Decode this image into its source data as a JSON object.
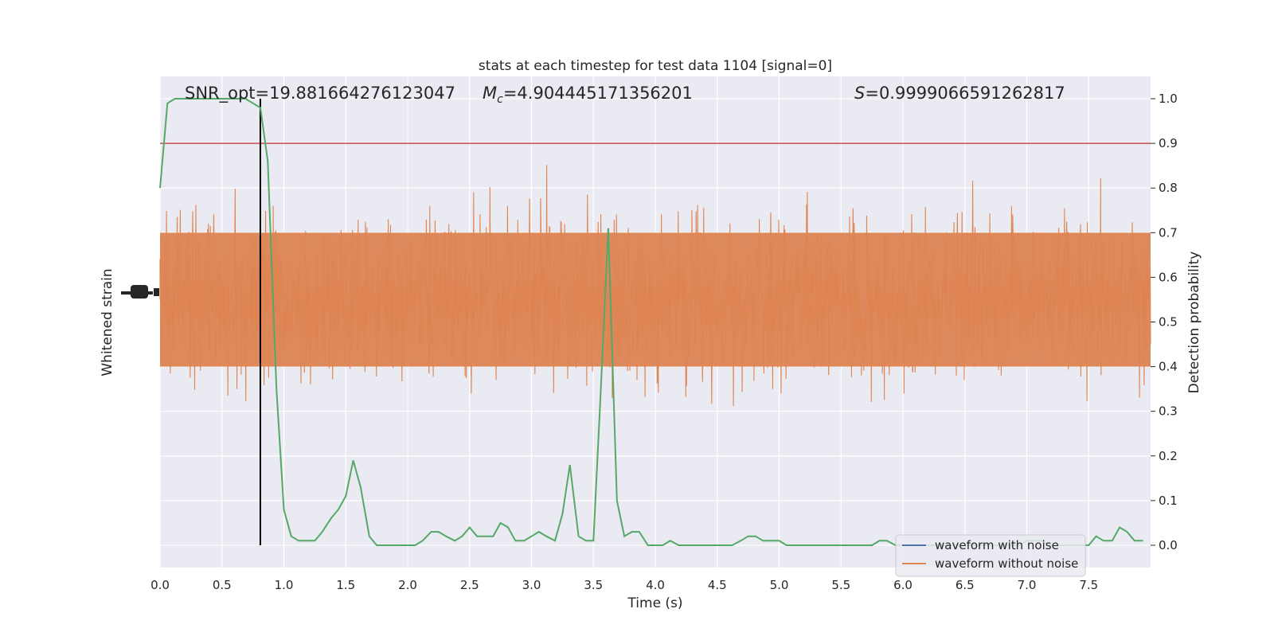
{
  "chart_data": {
    "type": "line",
    "title": "stats at each timestep for test data 1104 [signal=0]",
    "xlabel": "Time (s)",
    "ylabel_left": "Whitened strain",
    "ylabel_right": "Detection probability",
    "xlim": [
      0.0,
      8.0
    ],
    "ylim_right": [
      -0.05,
      1.05
    ],
    "x_ticks": [
      "0.0",
      "0.5",
      "1.0",
      "1.5",
      "2.0",
      "2.5",
      "3.0",
      "3.5",
      "4.0",
      "4.5",
      "5.0",
      "5.5",
      "6.0",
      "6.5",
      "7.0",
      "7.5"
    ],
    "y_ticks_right": [
      "0.0",
      "0.1",
      "0.2",
      "0.3",
      "0.4",
      "0.5",
      "0.6",
      "0.7",
      "0.8",
      "0.9",
      "1.0"
    ],
    "grid": true,
    "legend_position": "lower-right",
    "annotations": {
      "snr": "SNR_opt=19.881664276123047",
      "mc_symbol": "M",
      "mc_sub": "c",
      "mc_value": "=4.904445171356201",
      "s_symbol": "S",
      "s_value": "=0.9999066591262817"
    },
    "threshold": 0.9,
    "marker_time": 0.81,
    "series": [
      {
        "name": "waveform with noise",
        "color": "#4c72b0"
      },
      {
        "name": "waveform without noise",
        "color": "#dd8452"
      },
      {
        "color": "#55a868",
        "role": "detection probability",
        "x": [
          0.0,
          0.06,
          0.12,
          0.19,
          0.25,
          0.31,
          0.38,
          0.44,
          0.5,
          0.56,
          0.62,
          0.69,
          0.75,
          0.81,
          0.87,
          0.94,
          1.0,
          1.06,
          1.12,
          1.19,
          1.25,
          1.31,
          1.38,
          1.44,
          1.5,
          1.56,
          1.62,
          1.69,
          1.75,
          1.81,
          1.87,
          1.94,
          2.0,
          2.06,
          2.12,
          2.19,
          2.25,
          2.31,
          2.38,
          2.44,
          2.5,
          2.56,
          2.62,
          2.69,
          2.75,
          2.81,
          2.87,
          2.94,
          3.0,
          3.06,
          3.12,
          3.19,
          3.25,
          3.31,
          3.38,
          3.44,
          3.5,
          3.56,
          3.62,
          3.69,
          3.75,
          3.81,
          3.87,
          3.94,
          4.0,
          4.06,
          4.12,
          4.19,
          4.25,
          4.31,
          4.38,
          4.44,
          4.5,
          4.56,
          4.62,
          4.69,
          4.75,
          4.81,
          4.87,
          4.94,
          5.0,
          5.06,
          5.12,
          5.19,
          5.25,
          5.31,
          5.38,
          5.44,
          5.5,
          5.56,
          5.62,
          5.69,
          5.75,
          5.81,
          5.87,
          5.94,
          6.0,
          6.06,
          6.12,
          6.19,
          6.25,
          6.31,
          6.38,
          6.44,
          6.5,
          6.56,
          6.62,
          6.69,
          6.75,
          6.81,
          6.87,
          6.94,
          7.0,
          7.06,
          7.12,
          7.19,
          7.25,
          7.31,
          7.38,
          7.44,
          7.5,
          7.56,
          7.62,
          7.69,
          7.75,
          7.81,
          7.87,
          7.94
        ],
        "y": [
          0.8,
          0.99,
          1.0,
          1.0,
          1.0,
          1.0,
          1.0,
          1.0,
          1.0,
          1.0,
          1.0,
          1.0,
          0.99,
          0.98,
          0.86,
          0.35,
          0.08,
          0.02,
          0.01,
          0.01,
          0.01,
          0.03,
          0.06,
          0.08,
          0.11,
          0.19,
          0.13,
          0.02,
          0.0,
          0.0,
          0.0,
          0.0,
          0.0,
          0.0,
          0.01,
          0.03,
          0.03,
          0.02,
          0.01,
          0.02,
          0.04,
          0.02,
          0.02,
          0.02,
          0.05,
          0.04,
          0.01,
          0.01,
          0.02,
          0.03,
          0.02,
          0.01,
          0.07,
          0.18,
          0.02,
          0.01,
          0.01,
          0.35,
          0.71,
          0.1,
          0.02,
          0.03,
          0.03,
          0.0,
          0.0,
          0.0,
          0.01,
          0.0,
          0.0,
          0.0,
          0.0,
          0.0,
          0.0,
          0.0,
          0.0,
          0.01,
          0.02,
          0.02,
          0.01,
          0.01,
          0.01,
          0.0,
          0.0,
          0.0,
          0.0,
          0.0,
          0.0,
          0.0,
          0.0,
          0.0,
          0.0,
          0.0,
          0.0,
          0.01,
          0.01,
          0.0,
          0.0,
          0.0,
          0.0,
          0.0,
          0.0,
          0.0,
          0.0,
          0.0,
          0.0,
          0.0,
          0.0,
          0.0,
          0.0,
          0.0,
          0.0,
          0.0,
          0.01,
          0.01,
          0.01,
          0.0,
          0.0,
          0.0,
          0.0,
          0.0,
          0.0,
          0.02,
          0.01,
          0.01,
          0.04,
          0.03,
          0.01,
          0.01
        ]
      }
    ]
  }
}
